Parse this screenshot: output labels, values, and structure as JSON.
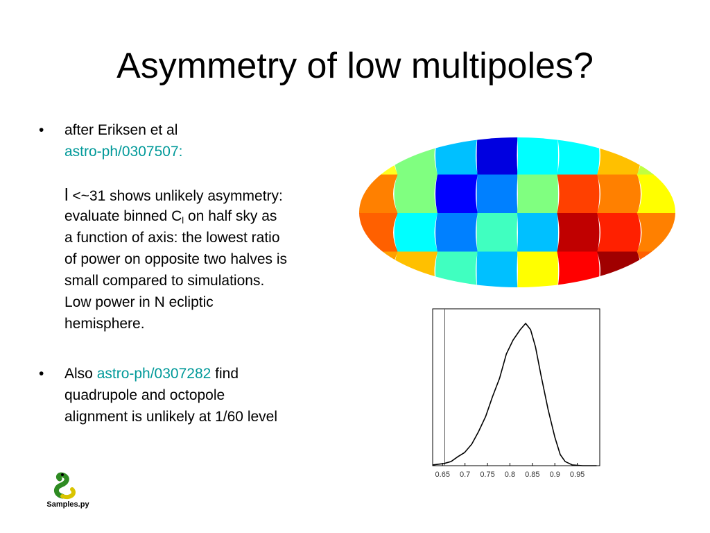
{
  "title": "Asymmetry of low multipoles?",
  "bullets": [
    {
      "intro": "after Eriksen et al",
      "link": "astro-ph/0307507:",
      "lines": [
        [
          "l",
          " <~31 shows unlikely asymmetry:"
        ],
        [
          "evaluate binned C",
          "l",
          " on half sky as"
        ],
        [
          "a function of axis: the lowest ratio"
        ],
        [
          "of power on opposite two halves is"
        ],
        [
          "small compared to simulations."
        ],
        [
          "Low power in N ecliptic"
        ],
        [
          "hemisphere."
        ]
      ]
    },
    {
      "before": "Also ",
      "link": "astro-ph/0307282",
      "after": " find",
      "lines": [
        "quadrupole and octopole",
        "alignment is unlikely at 1/60 level"
      ]
    }
  ],
  "logo": {
    "label": "Samples.py"
  },
  "chart_data": {
    "type": "line",
    "x": [
      0.628,
      0.653,
      0.669,
      0.684,
      0.699,
      0.715,
      0.73,
      0.746,
      0.761,
      0.777,
      0.792,
      0.807,
      0.823,
      0.835,
      0.846,
      0.857,
      0.869,
      0.885,
      0.9,
      0.912,
      0.923,
      0.939,
      0.962,
      0.993
    ],
    "values": [
      0.005,
      0.015,
      0.029,
      0.063,
      0.092,
      0.151,
      0.238,
      0.345,
      0.482,
      0.613,
      0.783,
      0.881,
      0.954,
      0.998,
      0.954,
      0.832,
      0.637,
      0.394,
      0.2,
      0.078,
      0.029,
      0.005,
      0,
      0
    ],
    "color": "#000000",
    "xlim": [
      0.628,
      1.0
    ],
    "ylim": [
      0,
      1.1
    ],
    "xticks": [
      0.65,
      0.7,
      0.75,
      0.8,
      0.85,
      0.9,
      0.95
    ],
    "marker_x": 0.655
  }
}
